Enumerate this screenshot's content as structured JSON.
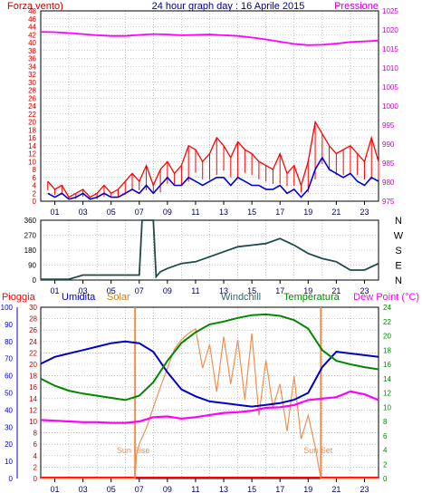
{
  "colors": {
    "wind": "#ff0000",
    "gust": "#0000dd",
    "pressure": "#ff00ff",
    "direction": "#1f4a4a",
    "rain": "#ff0000",
    "humidity": "#0000cc",
    "solar": "#f09050",
    "windchill": "#336666",
    "temperature": "#008800",
    "dewpoint": "#ff00ff",
    "axis": "#000000",
    "grid": "#9a9a9a"
  },
  "chart_data": [
    {
      "type": "line",
      "title": "24 hour graph day : 16 Aprile 2015",
      "left_label": "Forza vento)",
      "right_label": "Pressione",
      "x_ticks": [
        "01",
        "03",
        "05",
        "07",
        "09",
        "11",
        "13",
        "15",
        "17",
        "19",
        "21",
        "23"
      ],
      "y_left_ticks": [
        "0",
        "2",
        "4",
        "6",
        "8",
        "10",
        "12",
        "14",
        "16",
        "18",
        "20",
        "22",
        "24",
        "26",
        "28",
        "30",
        "32",
        "34",
        "36",
        "38",
        "40",
        "42",
        "44",
        "46",
        "48"
      ],
      "y_left_lim": [
        0,
        48
      ],
      "y_right_ticks": [
        "975",
        "980",
        "985",
        "990",
        "995",
        "1000",
        "1005",
        "1010",
        "1015",
        "1020",
        "1025"
      ],
      "y_right_lim": [
        975,
        1025
      ],
      "series": [
        {
          "key": "wind_gust",
          "x": [
            0.5,
            1,
            1.5,
            2,
            2.5,
            3,
            3.5,
            4,
            4.5,
            5,
            5.5,
            6,
            6.5,
            7,
            7.5,
            8,
            8.5,
            9,
            9.5,
            10,
            10.5,
            11,
            11.5,
            12,
            12.5,
            13,
            13.5,
            14,
            14.5,
            15,
            15.5,
            16,
            16.5,
            17,
            17.5,
            18,
            18.5,
            19,
            19.5,
            20,
            20.5,
            21,
            21.5,
            22,
            22.5,
            23,
            23.5,
            24
          ],
          "values": [
            5,
            3,
            4,
            1,
            2,
            3,
            1,
            2,
            4,
            2,
            3,
            5,
            7,
            5,
            9,
            4,
            8,
            10,
            7,
            9,
            14,
            13,
            10,
            12,
            16,
            14,
            11,
            15,
            13,
            12,
            10,
            9,
            8,
            12,
            7,
            9,
            4,
            10,
            20,
            17,
            14,
            12,
            13,
            14,
            12,
            10,
            16,
            10
          ]
        },
        {
          "key": "wind_avg",
          "x": [
            0.5,
            1,
            1.5,
            2,
            2.5,
            3,
            3.5,
            4,
            4.5,
            5,
            5.5,
            6,
            6.5,
            7,
            7.5,
            8,
            8.5,
            9,
            9.5,
            10,
            10.5,
            11,
            11.5,
            12,
            12.5,
            13,
            13.5,
            14,
            14.5,
            15,
            15.5,
            16,
            16.5,
            17,
            17.5,
            18,
            18.5,
            19,
            19.5,
            20,
            20.5,
            21,
            21.5,
            22,
            22.5,
            23,
            23.5,
            24
          ],
          "values": [
            2,
            1,
            2,
            0.5,
            1,
            2,
            0.5,
            1,
            2,
            1,
            1,
            2,
            3,
            2,
            4,
            2,
            4,
            6,
            4,
            4,
            6,
            5,
            4,
            5,
            6,
            6,
            4,
            6,
            5,
            4,
            4,
            3,
            3,
            4,
            2,
            3,
            1,
            3,
            8,
            11,
            8,
            7,
            6,
            7,
            5,
            4,
            6,
            5
          ]
        },
        {
          "key": "pressure",
          "x": [
            0,
            1,
            2,
            3,
            4,
            5,
            6,
            7,
            8,
            9,
            10,
            11,
            12,
            13,
            14,
            15,
            16,
            17,
            18,
            19,
            20,
            21,
            22,
            23,
            24
          ],
          "values": [
            1019.5,
            1019.4,
            1019.2,
            1018.9,
            1018.6,
            1018.4,
            1018.4,
            1018.7,
            1018.9,
            1018.8,
            1018.6,
            1018.7,
            1018.8,
            1018.6,
            1018.4,
            1018.0,
            1017.5,
            1016.9,
            1016.3,
            1016.0,
            1016.1,
            1016.4,
            1016.8,
            1017.0,
            1017.2
          ]
        }
      ]
    },
    {
      "type": "line",
      "title": "",
      "x_ticks": [
        "01",
        "03",
        "05",
        "07",
        "09",
        "11",
        "13",
        "15",
        "17",
        "19",
        "21",
        "23"
      ],
      "y_left_ticks": [
        "0",
        "90",
        "180",
        "270",
        "360"
      ],
      "y_left_lim": [
        0,
        360
      ],
      "direction_labels": [
        "N",
        "W",
        "S",
        "E",
        "N"
      ],
      "series": [
        {
          "key": "wind_direction",
          "x": [
            0,
            1,
            2,
            3,
            4,
            5,
            6,
            7,
            7.2,
            7.5,
            8,
            8.2,
            8.5,
            9,
            10,
            11,
            12,
            13,
            14,
            15,
            16,
            17,
            18,
            19,
            20,
            21,
            22,
            23,
            24
          ],
          "values": [
            5,
            5,
            5,
            30,
            30,
            30,
            30,
            30,
            360,
            360,
            360,
            20,
            50,
            70,
            100,
            110,
            140,
            170,
            200,
            210,
            220,
            250,
            210,
            160,
            130,
            110,
            60,
            60,
            100
          ]
        }
      ]
    },
    {
      "type": "line",
      "title": "",
      "labels": [
        "Pioggia",
        "Umidita",
        "Solar",
        "Windchill",
        "Temperatura",
        "Dew Point (°C)"
      ],
      "annotations": [
        "Sun Rise",
        "Sun Set"
      ],
      "x_ticks": [
        "01",
        "03",
        "05",
        "07",
        "09",
        "11",
        "13",
        "15",
        "17",
        "19",
        "21",
        "23"
      ],
      "y_humidity_ticks": [
        "0",
        "10",
        "20",
        "30",
        "40",
        "50",
        "60",
        "70",
        "80",
        "90",
        "100"
      ],
      "y_humidity_lim": [
        0,
        100
      ],
      "y_rain_ticks": [
        "0",
        "2",
        "4",
        "6",
        "8",
        "10",
        "12",
        "14",
        "16",
        "18",
        "20",
        "22",
        "24",
        "26",
        "28",
        "30"
      ],
      "y_rain_lim": [
        0,
        30
      ],
      "y_temp_ticks": [
        "0",
        "2",
        "4",
        "6",
        "8",
        "10",
        "12",
        "14",
        "16",
        "18",
        "20",
        "22",
        "24"
      ],
      "y_temp_lim": [
        0,
        24
      ],
      "series": [
        {
          "key": "humidity",
          "x": [
            0,
            1,
            2,
            3,
            4,
            5,
            6,
            7,
            8,
            9,
            10,
            11,
            12,
            13,
            14,
            15,
            16,
            17,
            18,
            19,
            20,
            21,
            22,
            23,
            24
          ],
          "values": [
            67,
            71,
            73,
            75,
            77,
            79,
            80,
            79,
            74,
            62,
            52,
            48,
            45,
            44,
            43,
            42,
            43,
            44,
            46,
            50,
            65,
            74,
            73,
            72,
            71
          ]
        },
        {
          "key": "temperature",
          "x": [
            0,
            1,
            2,
            3,
            4,
            5,
            6,
            7,
            8,
            9,
            10,
            11,
            12,
            13,
            14,
            15,
            16,
            17,
            18,
            19,
            20,
            21,
            22,
            23,
            24
          ],
          "values": [
            14,
            13,
            12.3,
            11.9,
            11.6,
            11.3,
            11.0,
            11.6,
            13.5,
            16.5,
            19.0,
            20.5,
            21.6,
            22.0,
            22.5,
            22.9,
            23.0,
            22.8,
            22.2,
            21.0,
            18.0,
            16.5,
            16.0,
            15.6,
            15.3
          ]
        },
        {
          "key": "dewpoint",
          "x": [
            0,
            1,
            2,
            3,
            4,
            5,
            6,
            7,
            8,
            9,
            10,
            11,
            12,
            13,
            14,
            15,
            16,
            17,
            18,
            19,
            20,
            21,
            22,
            23,
            24
          ],
          "values": [
            8.2,
            8.1,
            8.0,
            7.9,
            7.9,
            7.8,
            7.8,
            8.0,
            8.6,
            8.7,
            8.4,
            8.6,
            8.9,
            9.2,
            9.3,
            9.5,
            9.9,
            10.0,
            10.3,
            11.0,
            11.2,
            11.4,
            12.2,
            11.8,
            11.0
          ]
        },
        {
          "key": "solar",
          "x": [
            0,
            6.7,
            6.8,
            7,
            7.5,
            8,
            8.5,
            9,
            9.5,
            10,
            10.5,
            11,
            11.5,
            12,
            12.5,
            13,
            13.5,
            14,
            14.5,
            15,
            15.5,
            16,
            16.5,
            17,
            17.5,
            18,
            18.5,
            19,
            19.5,
            19.8,
            19.9,
            24
          ],
          "values": [
            0,
            0,
            15,
            22,
            32,
            45,
            58,
            70,
            82,
            88,
            92,
            95,
            70,
            85,
            55,
            90,
            60,
            88,
            50,
            92,
            40,
            75,
            45,
            60,
            30,
            65,
            25,
            40,
            20,
            5,
            0,
            0
          ]
        }
      ]
    }
  ]
}
